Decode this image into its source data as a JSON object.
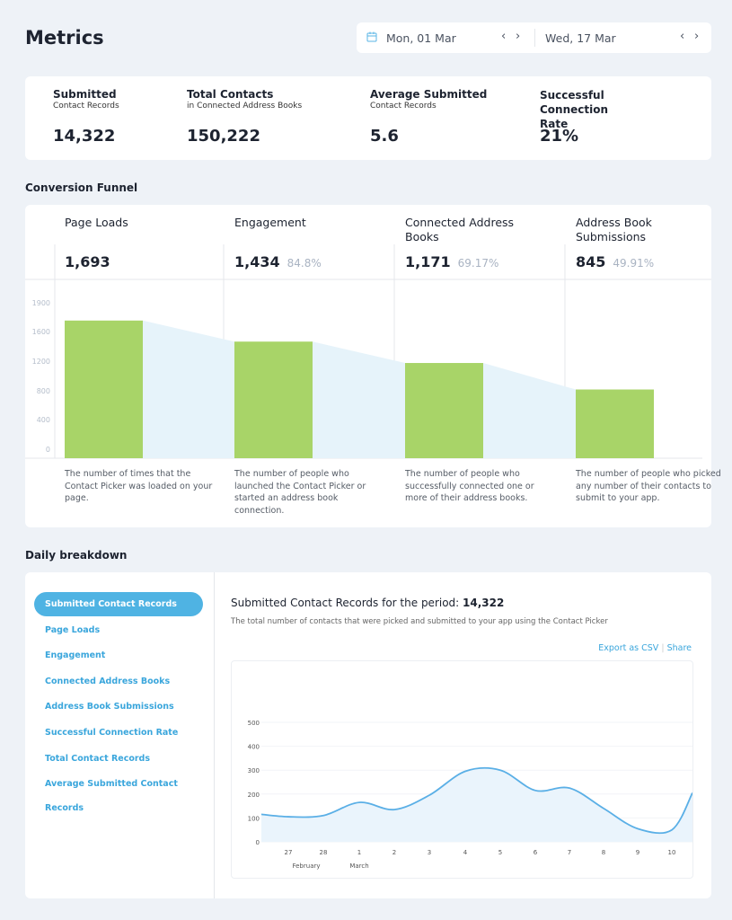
{
  "header": {
    "title": "Metrics",
    "date_start": "Mon, 01 Mar",
    "date_end": "Wed, 17 Mar"
  },
  "stats": [
    {
      "label": "Submitted",
      "sub": "Contact Records",
      "value": "14,322"
    },
    {
      "label": "Total Contacts",
      "sub": "in Connected Address Books",
      "value": "150,222"
    },
    {
      "label": "Average Submitted",
      "sub": "Contact Records",
      "value": "5.6"
    },
    {
      "label": "Successful Connection Rate",
      "sub": "",
      "value": "21%"
    }
  ],
  "funnel": {
    "title": "Conversion Funnel",
    "y_ticks": [
      "1900",
      "1600",
      "1200",
      "800",
      "400",
      "0"
    ],
    "stages": [
      {
        "label": "Page Loads",
        "value": "1,693",
        "pct": "",
        "desc": "The number of times that the Contact Picker was loaded on your page."
      },
      {
        "label": "Engagement",
        "value": "1,434",
        "pct": "84.8%",
        "desc": "The number of people who launched the Contact Picker or started an address book connection."
      },
      {
        "label": "Connected Address Books",
        "value": "1,171",
        "pct": "69.17%",
        "desc": "The number of people who successfully connected one or more of their address books."
      },
      {
        "label": "Address Book Submissions",
        "value": "845",
        "pct": "49.91%",
        "desc": "The number of people who picked any number of their contacts to submit to your app."
      }
    ],
    "values": [
      1693,
      1434,
      1171,
      845
    ],
    "bar_color": "#a8d468",
    "flow_color": "#e6f3fa"
  },
  "daily": {
    "title": "Daily breakdown",
    "menu": [
      "Submitted Contact Records",
      "Page Loads",
      "Engagement",
      "Connected Address Books",
      "Address Book Submissions",
      "Successful Connection Rate",
      "Total Contact Records",
      "Average Submitted Contact Records"
    ],
    "active_index": 0,
    "heading": "Submitted Contact Records for the period:",
    "heading_value": "14,322",
    "description": "The total number of contacts that were picked and submitted to your app using the Contact Picker",
    "export_label": "Export as CSV",
    "share_label": "Share",
    "accent": "#4fb3e3"
  },
  "chart_data": {
    "type": "area",
    "x_tick_labels": [
      "27",
      "28",
      "1",
      "2",
      "3",
      "4",
      "5",
      "6",
      "7",
      "8",
      "9",
      "10"
    ],
    "month_labels": [
      "February",
      "March"
    ],
    "y_ticks": [
      0,
      100,
      200,
      300,
      400,
      500
    ],
    "ylim": [
      0,
      500
    ],
    "values": [
      115,
      105,
      110,
      165,
      135,
      195,
      295,
      300,
      215,
      225,
      140,
      55,
      50,
      205
    ],
    "line_color": "#5aafe6",
    "fill_color": "#eaf4fc",
    "grid": true
  }
}
